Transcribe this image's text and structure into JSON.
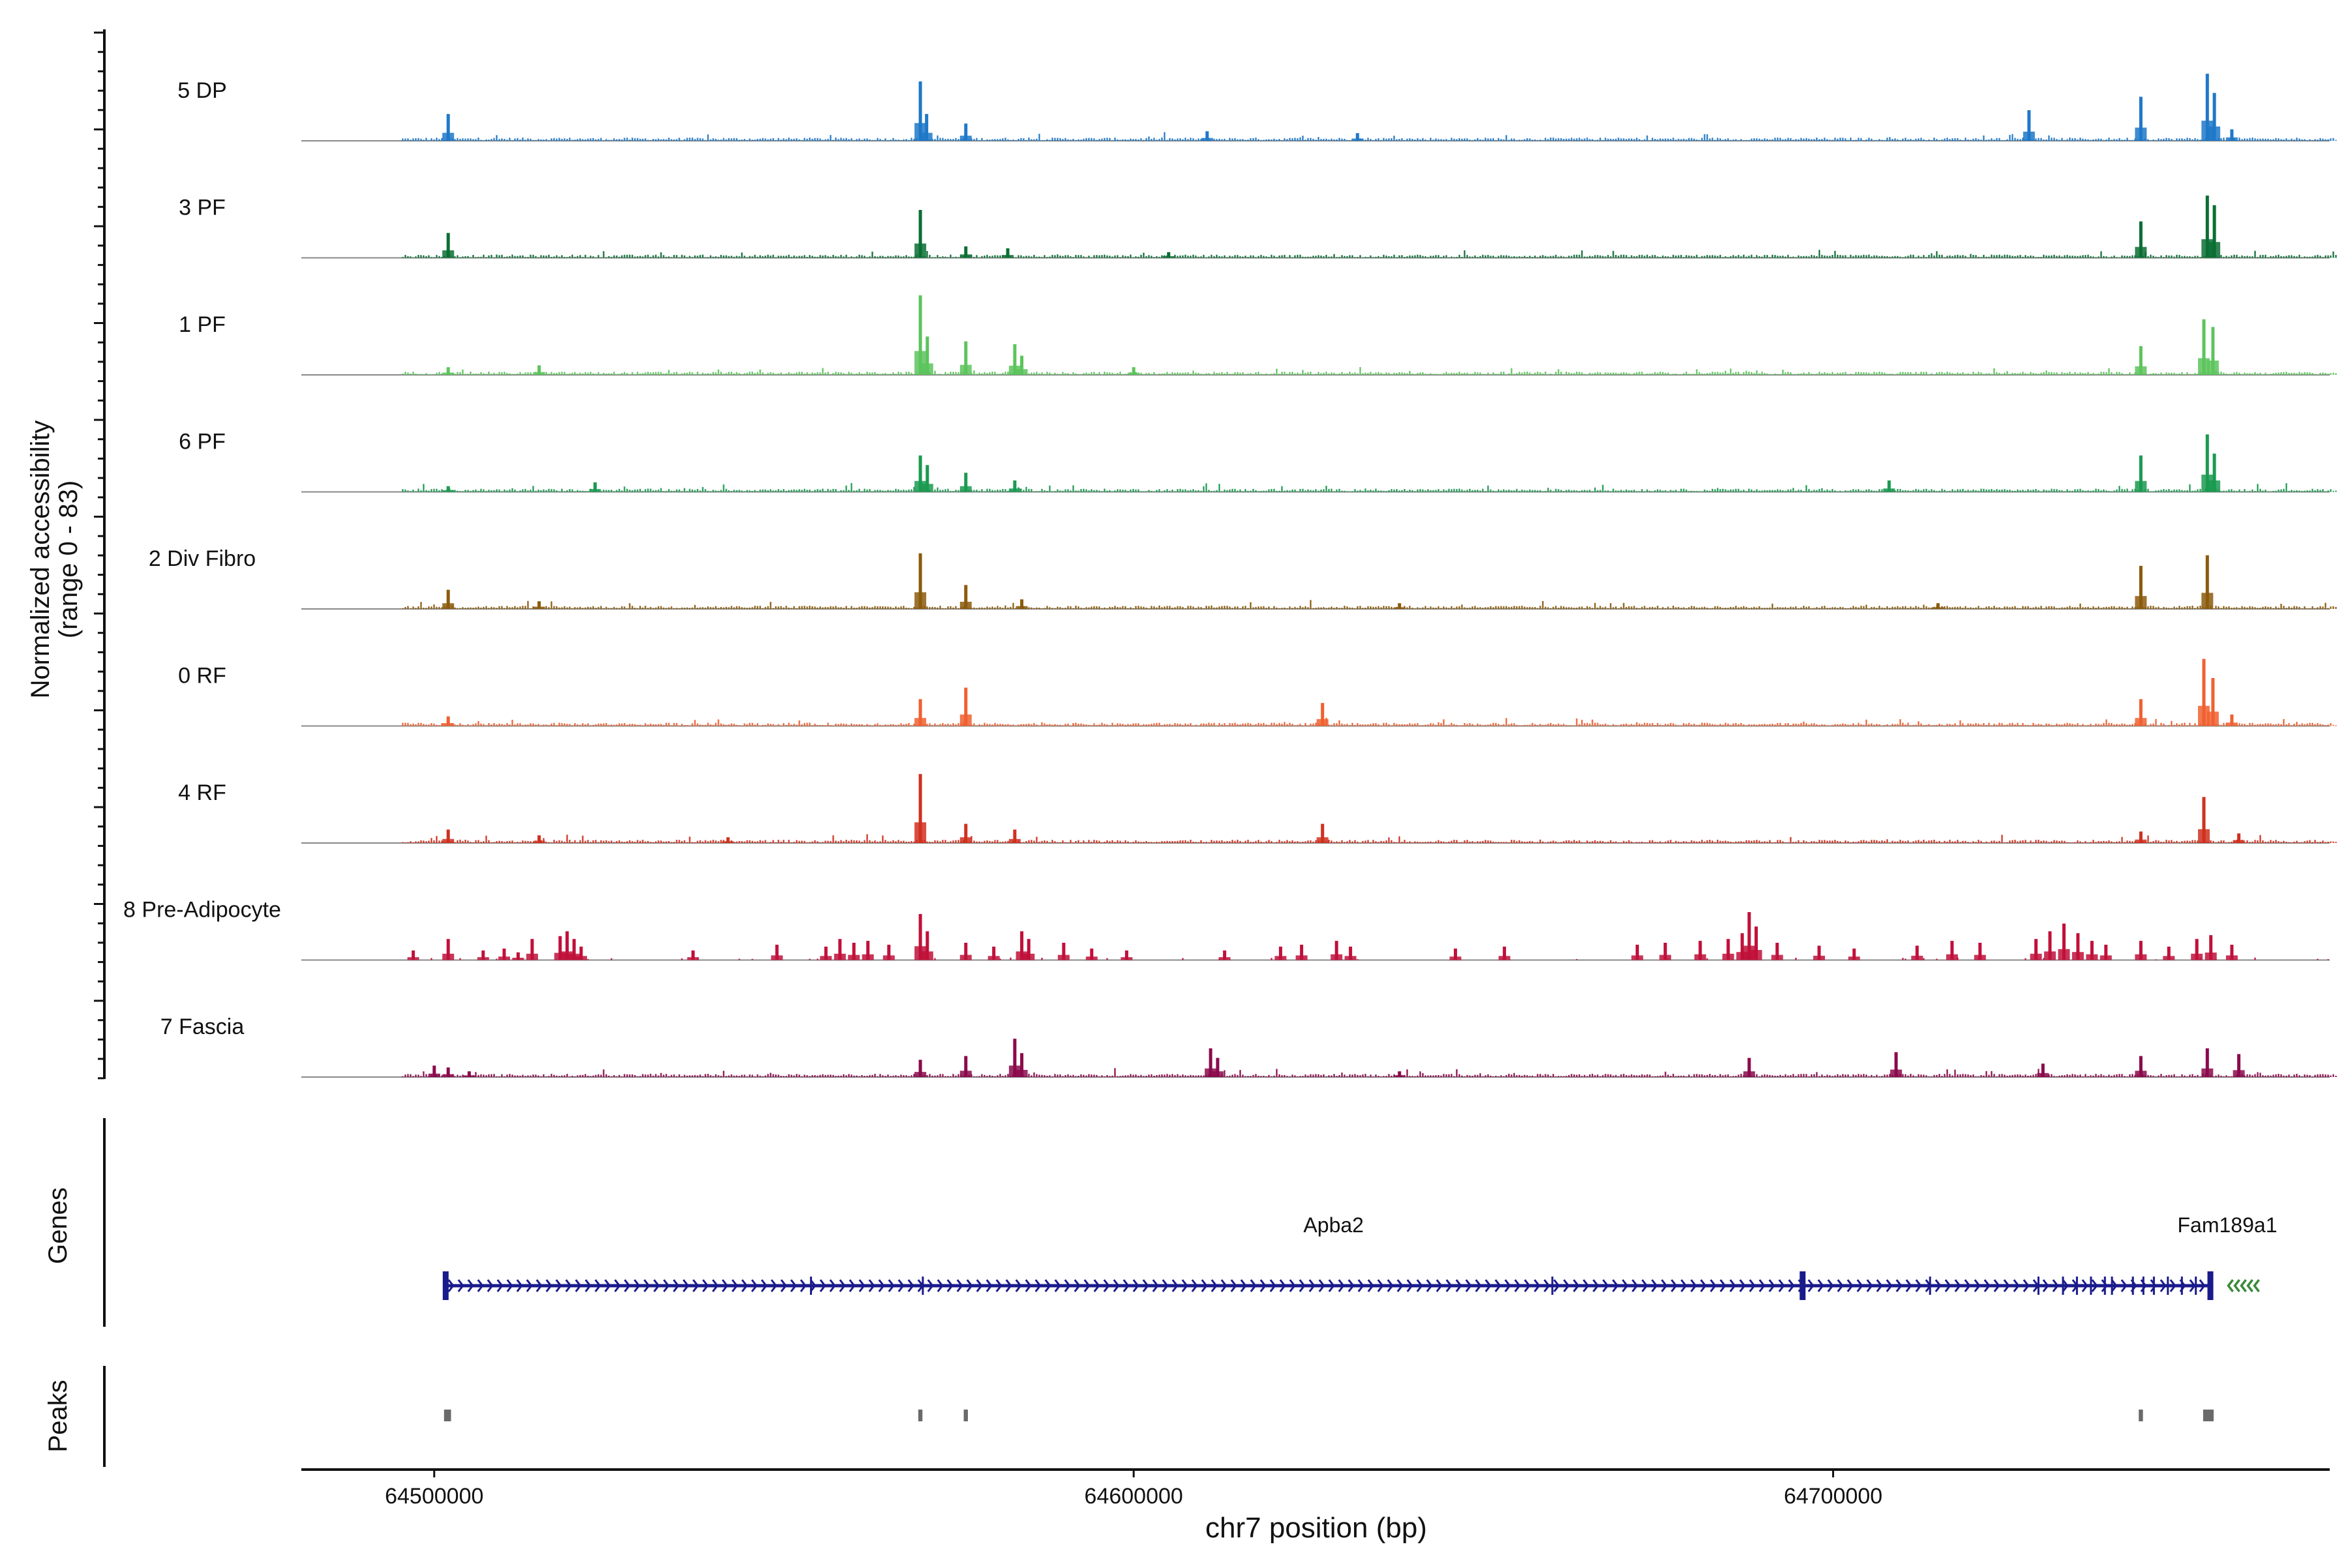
{
  "chart_data": {
    "type": "area",
    "title": "",
    "chromosome": "chr7",
    "xlabel": "chr7 position (bp)",
    "ylabel": "Normalized accessibility",
    "ylabel_range": "(range 0 - 83)",
    "ylim": [
      0,
      83
    ],
    "xlim": [
      64481000,
      64771000
    ],
    "x_ticks": [
      {
        "value": 64500000,
        "label": "64500000"
      },
      {
        "value": 64600000,
        "label": "64600000"
      },
      {
        "value": 64700000,
        "label": "64700000"
      }
    ],
    "coverage_start": 64495500,
    "coverage_end": 64772000,
    "series": [
      {
        "name": "5 DP",
        "color": "#1f78c8",
        "peaks": [
          [
            64502000,
            28
          ],
          [
            64569500,
            62
          ],
          [
            64570400,
            28
          ],
          [
            64576000,
            18
          ],
          [
            64610500,
            10
          ],
          [
            64632000,
            8
          ],
          [
            64728000,
            32
          ],
          [
            64744000,
            46
          ],
          [
            64753500,
            70
          ],
          [
            64754500,
            50
          ],
          [
            64757000,
            12
          ]
        ]
      },
      {
        "name": "3 PF",
        "color": "#0b6e34",
        "peaks": [
          [
            64502000,
            26
          ],
          [
            64569500,
            50
          ],
          [
            64576000,
            12
          ],
          [
            64582000,
            10
          ],
          [
            64605000,
            6
          ],
          [
            64744000,
            38
          ],
          [
            64753500,
            65
          ],
          [
            64754500,
            55
          ]
        ]
      },
      {
        "name": "1 PF",
        "color": "#5cc45c",
        "peaks": [
          [
            64502000,
            8
          ],
          [
            64515000,
            10
          ],
          [
            64569500,
            83
          ],
          [
            64570500,
            40
          ],
          [
            64576000,
            35
          ],
          [
            64583000,
            32
          ],
          [
            64584000,
            20
          ],
          [
            64600000,
            8
          ],
          [
            64744000,
            30
          ],
          [
            64753000,
            58
          ],
          [
            64754300,
            50
          ]
        ]
      },
      {
        "name": "6 PF",
        "color": "#1a9a50",
        "peaks": [
          [
            64502000,
            6
          ],
          [
            64523000,
            10
          ],
          [
            64569500,
            38
          ],
          [
            64570500,
            28
          ],
          [
            64576000,
            20
          ],
          [
            64583000,
            12
          ],
          [
            64708000,
            12
          ],
          [
            64744000,
            38
          ],
          [
            64753500,
            60
          ],
          [
            64754500,
            40
          ]
        ]
      },
      {
        "name": "2 Div Fibro",
        "color": "#8b5a0c",
        "peaks": [
          [
            64502000,
            20
          ],
          [
            64515000,
            8
          ],
          [
            64569500,
            58
          ],
          [
            64576000,
            25
          ],
          [
            64584000,
            10
          ],
          [
            64638000,
            6
          ],
          [
            64715000,
            6
          ],
          [
            64744000,
            45
          ],
          [
            64753500,
            56
          ]
        ]
      },
      {
        "name": "0 RF",
        "color": "#f06030",
        "peaks": [
          [
            64502000,
            10
          ],
          [
            64569500,
            28
          ],
          [
            64576000,
            40
          ],
          [
            64627000,
            24
          ],
          [
            64744000,
            28
          ],
          [
            64753000,
            70
          ],
          [
            64754300,
            50
          ],
          [
            64757000,
            12
          ]
        ]
      },
      {
        "name": "4 RF",
        "color": "#d03020",
        "peaks": [
          [
            64502000,
            14
          ],
          [
            64515000,
            8
          ],
          [
            64542000,
            6
          ],
          [
            64569500,
            72
          ],
          [
            64576000,
            20
          ],
          [
            64583000,
            14
          ],
          [
            64627000,
            20
          ],
          [
            64744000,
            12
          ],
          [
            64753000,
            48
          ],
          [
            64758000,
            10
          ]
        ]
      },
      {
        "name": "8 Pre-Adipocyte",
        "color": "#c0103a",
        "peaks": [
          [
            64497000,
            10
          ],
          [
            64502000,
            22
          ],
          [
            64507000,
            10
          ],
          [
            64510000,
            12
          ],
          [
            64512000,
            8
          ],
          [
            64514000,
            22
          ],
          [
            64518000,
            25
          ],
          [
            64519000,
            30
          ],
          [
            64520000,
            22
          ],
          [
            64521000,
            14
          ],
          [
            64537000,
            10
          ],
          [
            64549000,
            16
          ],
          [
            64556000,
            14
          ],
          [
            64558000,
            22
          ],
          [
            64560000,
            18
          ],
          [
            64562000,
            20
          ],
          [
            64565000,
            16
          ],
          [
            64569500,
            48
          ],
          [
            64570500,
            30
          ],
          [
            64576000,
            18
          ],
          [
            64580000,
            14
          ],
          [
            64584000,
            30
          ],
          [
            64585000,
            22
          ],
          [
            64590000,
            18
          ],
          [
            64594000,
            12
          ],
          [
            64599000,
            10
          ],
          [
            64613000,
            10
          ],
          [
            64621000,
            14
          ],
          [
            64624000,
            16
          ],
          [
            64629000,
            20
          ],
          [
            64631000,
            14
          ],
          [
            64646000,
            12
          ],
          [
            64653000,
            14
          ],
          [
            64672000,
            16
          ],
          [
            64676000,
            18
          ],
          [
            64681000,
            20
          ],
          [
            64685000,
            22
          ],
          [
            64687000,
            28
          ],
          [
            64688000,
            50
          ],
          [
            64689000,
            35
          ],
          [
            64692000,
            18
          ],
          [
            64698000,
            15
          ],
          [
            64703000,
            12
          ],
          [
            64712000,
            15
          ],
          [
            64717000,
            20
          ],
          [
            64721000,
            18
          ],
          [
            64729000,
            22
          ],
          [
            64731000,
            30
          ],
          [
            64733000,
            38
          ],
          [
            64735000,
            28
          ],
          [
            64737000,
            20
          ],
          [
            64739000,
            16
          ],
          [
            64744000,
            20
          ],
          [
            64748000,
            14
          ],
          [
            64752000,
            22
          ],
          [
            64754000,
            26
          ],
          [
            64757000,
            16
          ]
        ]
      },
      {
        "name": "7 Fascia",
        "color": "#8b0a4c",
        "peaks": [
          [
            64500000,
            12
          ],
          [
            64502000,
            10
          ],
          [
            64505000,
            6
          ],
          [
            64569500,
            18
          ],
          [
            64576000,
            22
          ],
          [
            64583000,
            40
          ],
          [
            64584000,
            25
          ],
          [
            64611000,
            30
          ],
          [
            64612000,
            20
          ],
          [
            64638000,
            6
          ],
          [
            64688000,
            20
          ],
          [
            64709000,
            26
          ],
          [
            64730000,
            14
          ],
          [
            64744000,
            22
          ],
          [
            64753500,
            30
          ],
          [
            64758000,
            24
          ]
        ]
      }
    ],
    "genes": [
      {
        "name": "Apba2",
        "strand": "+",
        "start": 64501500,
        "end": 64753800,
        "color": "#1a1a8c",
        "exons": [
          64501500,
          64554000,
          64570000,
          64660000,
          64695500,
          64714000,
          64729500,
          64733000,
          64735000,
          64737000,
          64739000,
          64740000,
          64743000,
          64744500,
          64746000,
          64748000,
          64750000,
          64752000,
          64753800
        ]
      },
      {
        "name": "Fam189a1",
        "strand": "-",
        "start": 64756500,
        "end": 64760500,
        "color": "#3a8a3a",
        "exons": []
      }
    ],
    "peaks_track": [
      {
        "start": 64501400,
        "end": 64502400
      },
      {
        "start": 64569200,
        "end": 64569800
      },
      {
        "start": 64575700,
        "end": 64576300
      },
      {
        "start": 64743700,
        "end": 64744300
      },
      {
        "start": 64752900,
        "end": 64754400
      }
    ],
    "panel_labels": {
      "genes": "Genes",
      "peaks": "Peaks"
    }
  }
}
